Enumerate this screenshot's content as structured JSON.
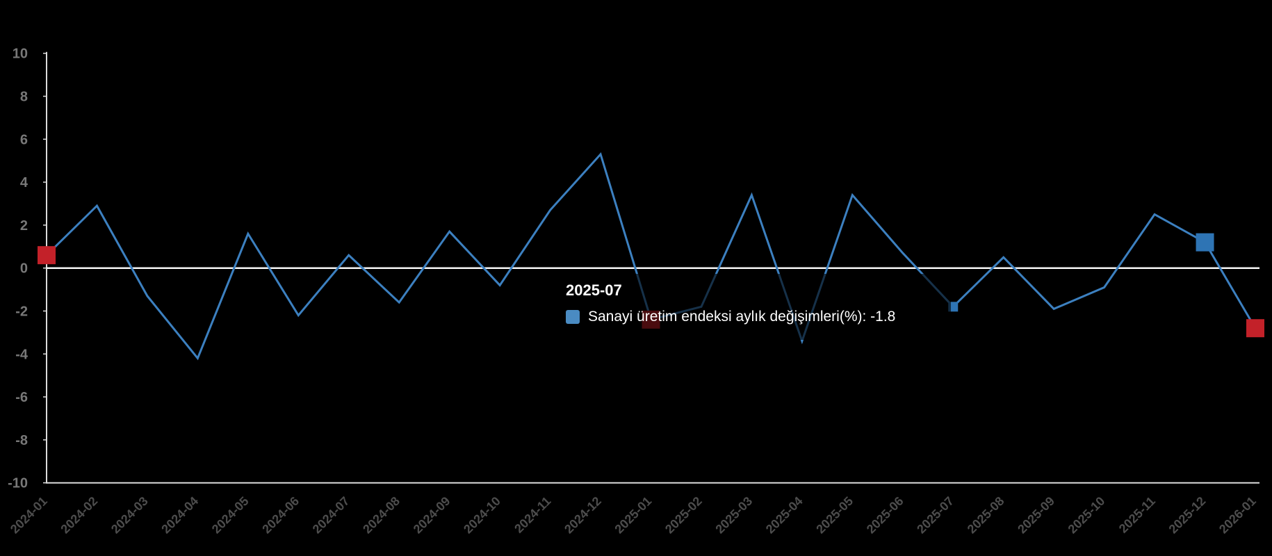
{
  "app": {
    "background": "#000000"
  },
  "tooltip": {
    "title": "2025-07",
    "series_label": "Sanayi üretim endeksi aylık değişimleri(%)",
    "value": "-1.8",
    "display": "Sanayi üretim endeksi aylık değişimleri(%): -1.8"
  },
  "chart_data": {
    "type": "line",
    "title": "",
    "xlabel": "",
    "ylabel": "",
    "categories": [
      "2024-01",
      "2024-02",
      "2024-03",
      "2024-04",
      "2024-05",
      "2024-06",
      "2024-07",
      "2024-08",
      "2024-09",
      "2024-10",
      "2024-11",
      "2024-12",
      "2025-01",
      "2025-02",
      "2025-03",
      "2025-04",
      "2025-05",
      "2025-06",
      "2025-07",
      "2025-08",
      "2025-09",
      "2025-10",
      "2025-11",
      "2025-12",
      "2026-01"
    ],
    "series": [
      {
        "name": "Sanayi üretim endeksi aylık değişimleri(%)",
        "values": [
          0.6,
          2.9,
          -1.3,
          -4.2,
          1.6,
          -2.2,
          0.6,
          -1.6,
          1.7,
          -0.8,
          2.7,
          5.3,
          -2.4,
          -1.8,
          3.4,
          -3.4,
          3.4,
          0.7,
          -1.8,
          0.5,
          -1.9,
          -0.9,
          2.5,
          1.2,
          -2.8
        ]
      }
    ],
    "ylim": [
      -10,
      10
    ],
    "y_ticks": [
      10,
      8,
      6,
      4,
      2,
      0,
      -2,
      -4,
      -6,
      -8,
      -10
    ],
    "grid": false,
    "legend_position": "none",
    "highlighted_point": {
      "category": "2025-07",
      "value": -1.8
    },
    "markers": [
      {
        "category": "2024-01",
        "color": "#C32129",
        "size": 26
      },
      {
        "category": "2025-01",
        "color": "#C32129",
        "size": 26
      },
      {
        "category": "2025-12",
        "color": "#2E74B4",
        "size": 26
      },
      {
        "category": "2026-01",
        "color": "#C32129",
        "size": 26
      },
      {
        "category": "2025-07",
        "color": "#2E74B4",
        "size": 14
      }
    ],
    "colors": {
      "line": "#3C80C0",
      "legend_icon": "#4A8BC2",
      "axis_line": "#DCDCDC",
      "zero_line": "#F5F5F5",
      "x_label": "#4D4D4D",
      "y_label": "#787878"
    }
  }
}
